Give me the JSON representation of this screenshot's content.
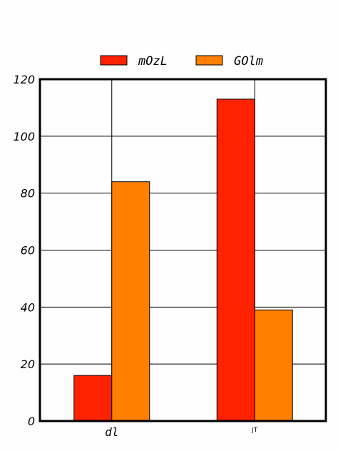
{
  "chart_data": {
    "type": "bar",
    "categories": [
      "dl",
      "jT"
    ],
    "series": [
      {
        "name": "mOzL",
        "values": [
          16,
          113
        ],
        "color": "#ff2200"
      },
      {
        "name": "GOlm",
        "values": [
          84,
          39
        ],
        "color": "#ff7f00"
      }
    ],
    "ylim": [
      0,
      120
    ],
    "yticks": [
      0,
      20,
      40,
      60,
      80,
      100,
      120
    ],
    "grid": true,
    "legend": "top-center",
    "title": "",
    "xlabel": "",
    "ylabel": ""
  }
}
